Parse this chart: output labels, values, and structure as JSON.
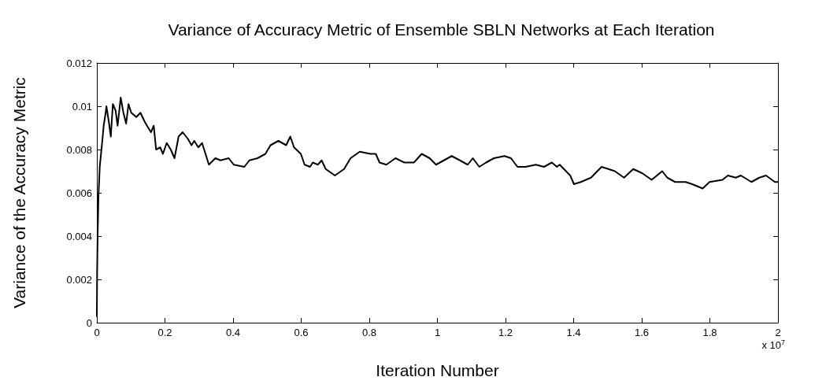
{
  "chart_data": {
    "type": "line",
    "title": "Variance of Accuracy Metric of Ensemble SBLN Networks at Each Iteration",
    "xlabel": "Iteration Number",
    "ylabel": "Variance of the Accuracy Metric",
    "annotations": [
      "x 10$^{7}$"
    ],
    "x": [
      0,
      0.0008,
      0.0023,
      0.0046,
      0.0085,
      0.016,
      0.02,
      0.025,
      0.028,
      0.035,
      0.041,
      0.047,
      0.055,
      0.061,
      0.07,
      0.078,
      0.086,
      0.093,
      0.101,
      0.116,
      0.128,
      0.14,
      0.151,
      0.159,
      0.167,
      0.174,
      0.186,
      0.194,
      0.205,
      0.217,
      0.228,
      0.24,
      0.252,
      0.267,
      0.278,
      0.286,
      0.298,
      0.309,
      0.317,
      0.329,
      0.348,
      0.363,
      0.387,
      0.402,
      0.433,
      0.448,
      0.472,
      0.495,
      0.51,
      0.533,
      0.556,
      0.568,
      0.579,
      0.599,
      0.61,
      0.626,
      0.634,
      0.649,
      0.66,
      0.672,
      0.699,
      0.726,
      0.745,
      0.772,
      0.803,
      0.819,
      0.83,
      0.85,
      0.877,
      0.903,
      0.931,
      0.954,
      0.977,
      0.996,
      1.019,
      1.042,
      1.066,
      1.089,
      1.104,
      1.123,
      1.143,
      1.166,
      1.197,
      1.216,
      1.235,
      1.259,
      1.289,
      1.313,
      1.336,
      1.351,
      1.359,
      1.39,
      1.401,
      1.421,
      1.451,
      1.482,
      1.502,
      1.521,
      1.548,
      1.575,
      1.602,
      1.629,
      1.66,
      1.675,
      1.698,
      1.729,
      1.748,
      1.779,
      1.799,
      1.837,
      1.853,
      1.876,
      1.891,
      1.922,
      1.945,
      1.965,
      1.991,
      2.0
    ],
    "series": [
      {
        "color": "#000000",
        "values": [
          0.0003,
          0.0023,
          0.004,
          0.0058,
          0.0072,
          0.0084,
          0.0091,
          0.0096,
          0.01,
          0.0093,
          0.0086,
          0.0101,
          0.0098,
          0.0091,
          0.0104,
          0.0097,
          0.0092,
          0.0101,
          0.0097,
          0.0095,
          0.0097,
          0.0093,
          0.009,
          0.0088,
          0.0091,
          0.008,
          0.0081,
          0.0078,
          0.0083,
          0.008,
          0.0076,
          0.0086,
          0.0088,
          0.0085,
          0.0082,
          0.0084,
          0.0081,
          0.0083,
          0.0079,
          0.0073,
          0.0076,
          0.0075,
          0.0076,
          0.0073,
          0.0072,
          0.0075,
          0.0076,
          0.0078,
          0.0082,
          0.0084,
          0.0082,
          0.0086,
          0.0081,
          0.0078,
          0.0073,
          0.0072,
          0.0074,
          0.0073,
          0.0075,
          0.0071,
          0.0068,
          0.0071,
          0.0076,
          0.0079,
          0.0078,
          0.0078,
          0.0074,
          0.0073,
          0.0076,
          0.0074,
          0.0074,
          0.0078,
          0.0076,
          0.0073,
          0.0075,
          0.0077,
          0.0075,
          0.0073,
          0.0076,
          0.0072,
          0.0074,
          0.0076,
          0.0077,
          0.0076,
          0.0072,
          0.0072,
          0.0073,
          0.0072,
          0.0074,
          0.0072,
          0.0073,
          0.0068,
          0.0064,
          0.0065,
          0.0067,
          0.0072,
          0.0071,
          0.007,
          0.0067,
          0.0071,
          0.0069,
          0.0066,
          0.007,
          0.0067,
          0.0065,
          0.0065,
          0.0064,
          0.0062,
          0.0065,
          0.0066,
          0.0068,
          0.0067,
          0.0068,
          0.0065,
          0.0067,
          0.0068,
          0.0065,
          0.0065
        ]
      }
    ],
    "xlim": [
      0,
      2
    ],
    "xticks": [
      0,
      0.2,
      0.4,
      0.6,
      0.8,
      1,
      1.2,
      1.4,
      1.6,
      1.8,
      2
    ],
    "ylim": [
      0,
      0.012
    ],
    "yticks": [
      0,
      0.002,
      0.004,
      0.006,
      0.008,
      0.01,
      0.012
    ],
    "grid": false,
    "marker": "none",
    "line_style": "solid"
  }
}
